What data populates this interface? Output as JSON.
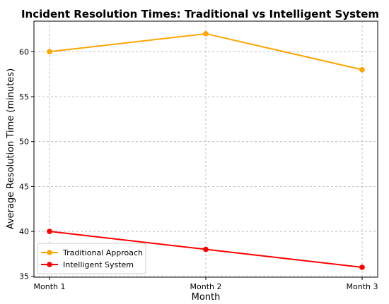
{
  "chart_data": {
    "type": "line",
    "title": "Incident Resolution Times: Traditional vs Intelligent System",
    "xlabel": "Month",
    "ylabel": "Average Resolution Time (minutes)",
    "categories": [
      "Month 1",
      "Month 2",
      "Month 3"
    ],
    "ylim": [
      34.9,
      63.4
    ],
    "yticks": [
      35,
      40,
      45,
      50,
      55,
      60
    ],
    "grid": true,
    "legend_position": "lower-left",
    "series": [
      {
        "name": "Traditional Approach",
        "values": [
          60,
          62,
          58
        ],
        "color": "#FFA500",
        "marker": "circle"
      },
      {
        "name": "Intelligent System",
        "values": [
          40,
          38,
          36
        ],
        "color": "#FF0000",
        "marker": "circle"
      }
    ]
  }
}
